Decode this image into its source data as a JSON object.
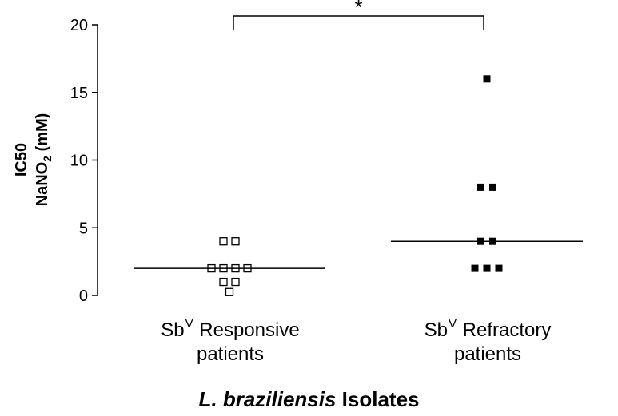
{
  "chart_data": {
    "type": "scatter",
    "ylabel_line1": "IC50",
    "ylabel_line2_prefix": "NaNO",
    "ylabel_line2_sub": "2",
    "ylabel_line2_suffix": " (mM)",
    "xlabel_italic": "L. braziliensis",
    "xlabel_rest": " Isolates",
    "ylim": [
      0,
      20
    ],
    "yticks": [
      0,
      5,
      10,
      15,
      20
    ],
    "categories": [
      {
        "prefix": "Sb",
        "sup": "V",
        "rest": " Responsive",
        "line2": "patients"
      },
      {
        "prefix": "Sb",
        "sup": "V",
        "rest": " Refractory",
        "line2": "patients"
      }
    ],
    "series": [
      {
        "values": [
          4,
          4,
          2,
          2,
          2,
          2,
          1,
          1,
          0.25
        ],
        "median": 2,
        "marker": "open-square"
      },
      {
        "values": [
          16,
          8,
          8,
          4,
          4,
          2,
          2,
          2
        ],
        "median": 4,
        "marker": "filled-square"
      }
    ],
    "significance": "*"
  }
}
